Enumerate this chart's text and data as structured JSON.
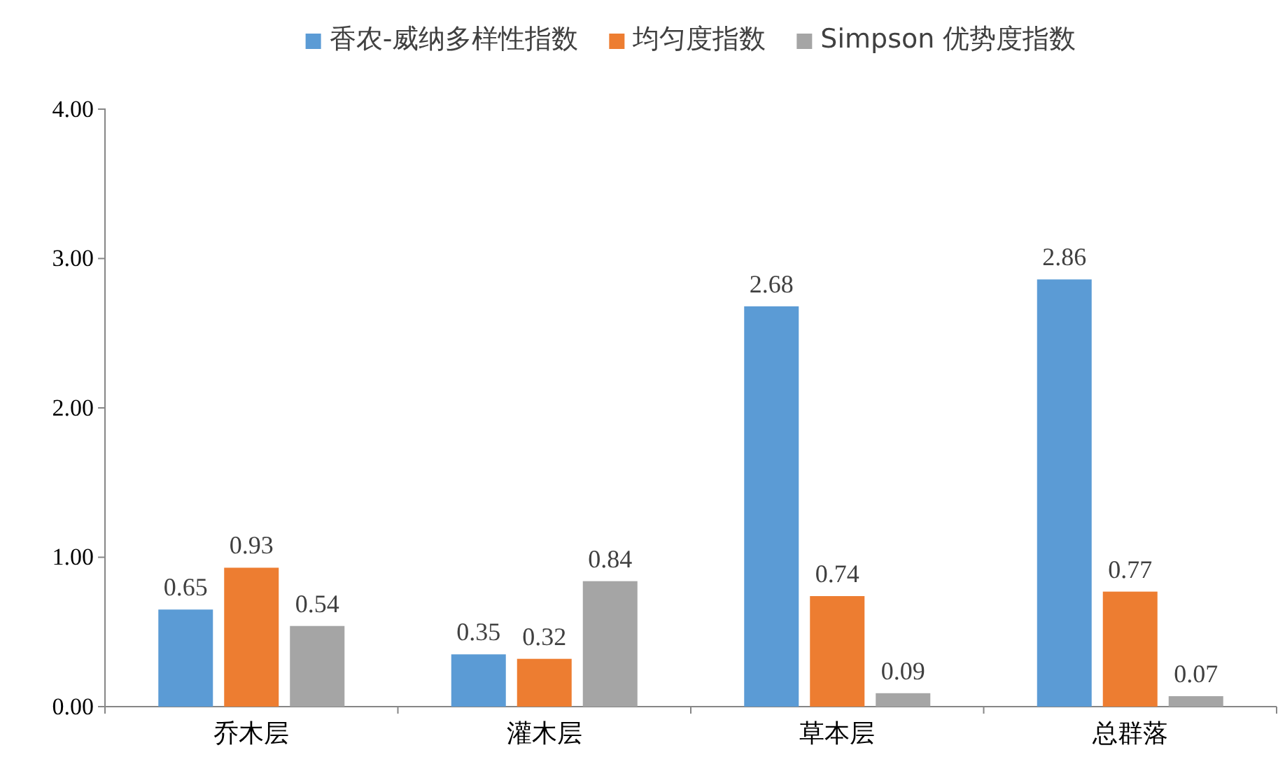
{
  "chart_data": {
    "type": "bar",
    "categories": [
      "乔木层",
      "灌木层",
      "草本层",
      "总群落"
    ],
    "series": [
      {
        "name": "香农-威纳多样性指数",
        "color": "#5b9bd5",
        "values": [
          0.65,
          0.35,
          2.68,
          2.86
        ]
      },
      {
        "name": "均匀度指数",
        "color": "#ed7d31",
        "values": [
          0.93,
          0.32,
          0.74,
          0.77
        ]
      },
      {
        "name": "Simpson 优势度指数",
        "color": "#a5a5a5",
        "values": [
          0.54,
          0.84,
          0.09,
          0.07
        ]
      }
    ],
    "ylim": [
      0,
      4
    ],
    "yticks": [
      {
        "value": 0,
        "label": "0.00"
      },
      {
        "value": 1,
        "label": "1.00"
      },
      {
        "value": 2,
        "label": "2.00"
      },
      {
        "value": 3,
        "label": "3.00"
      },
      {
        "value": 4,
        "label": "4.00"
      }
    ],
    "data_labels": true,
    "grid": false,
    "legend": "top"
  }
}
